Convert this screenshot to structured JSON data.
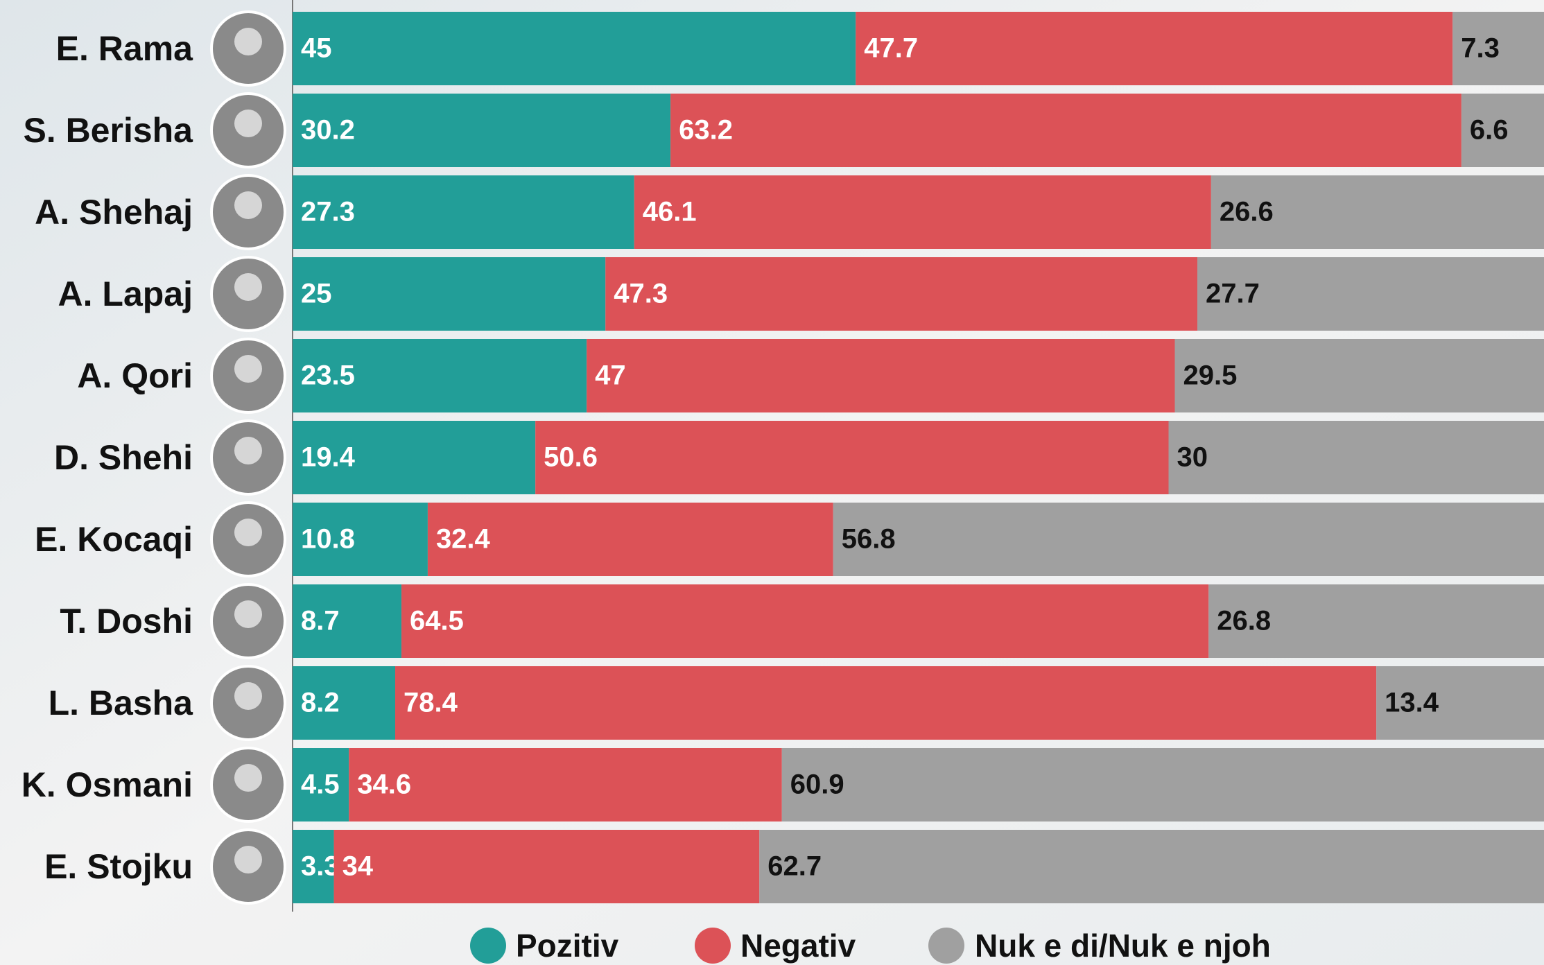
{
  "chart_data": {
    "type": "stacked-bar-horizontal",
    "categories": [
      "E. Rama",
      "S. Berisha",
      "A. Shehaj",
      "A. Lapaj",
      "A. Qori",
      "D. Shehi",
      "E. Kocaqi",
      "T. Doshi",
      "L. Basha",
      "K. Osmani",
      "E. Stojku"
    ],
    "series": [
      {
        "name": "Pozitiv",
        "color": "#229e98",
        "values": [
          45,
          30.2,
          27.3,
          25,
          23.5,
          19.4,
          10.8,
          8.7,
          8.2,
          4.5,
          3.3
        ]
      },
      {
        "name": "Negativ",
        "color": "#dc5257",
        "values": [
          47.7,
          63.2,
          46.1,
          47.3,
          47,
          50.6,
          32.4,
          64.5,
          78.4,
          34.6,
          34
        ]
      },
      {
        "name": "Nuk e di/Nuk e njoh",
        "color": "#a0a0a0",
        "values": [
          7.3,
          6.6,
          26.6,
          27.7,
          29.5,
          30,
          56.8,
          26.8,
          13.4,
          60.9,
          62.7
        ]
      }
    ],
    "xlim": [
      0,
      100
    ]
  }
}
